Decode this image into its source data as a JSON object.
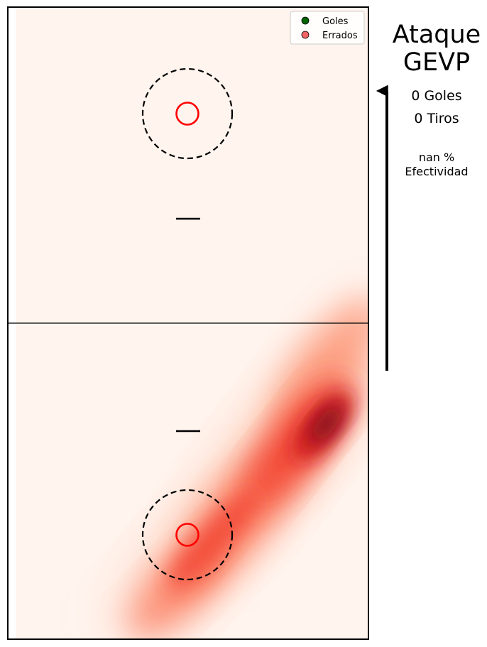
{
  "chart_data": {
    "type": "heatmap",
    "title": "Ataque GEVP",
    "legend": {
      "placement": "top-right",
      "entries": [
        {
          "label": "Goles",
          "color": "#006400"
        },
        {
          "label": "Errados",
          "color": "#f06464"
        }
      ]
    },
    "stats": {
      "goals": "0 Goles",
      "shots": "0 Tiros",
      "effectiveness_value": "nan %",
      "effectiveness_label": "Efectividad"
    },
    "goals_points": [],
    "missed_points": [],
    "density_colormap": "Reds",
    "density_peak_color": "#7a0a1a",
    "hoop_color": "#ff0000",
    "attack_direction": "up",
    "grid": false,
    "axes_visible": false
  }
}
